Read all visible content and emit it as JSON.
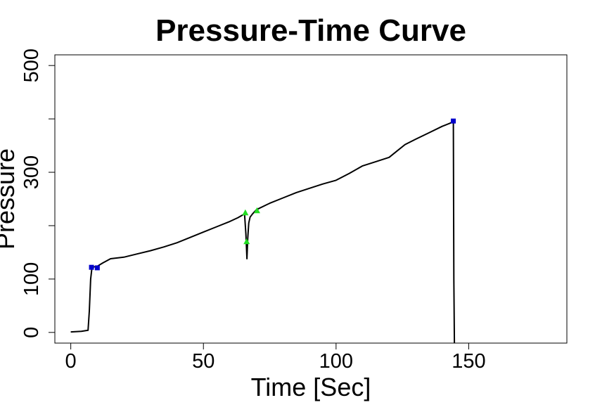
{
  "chart_data": {
    "type": "line",
    "title": "Pressure-Time Curve",
    "xlabel": "Time [Sec]",
    "ylabel": "Pressure",
    "xlim": [
      -6,
      187
    ],
    "ylim": [
      -20,
      520
    ],
    "x_ticks": [
      0,
      50,
      100,
      150
    ],
    "x_tick_labels": [
      "0",
      "50",
      "100",
      "150"
    ],
    "y_ticks": [
      0,
      100,
      200,
      300,
      400,
      500
    ],
    "y_tick_labels": [
      "0",
      "100",
      "",
      "300",
      "",
      "500"
    ],
    "grid": false,
    "series": [
      {
        "color": "#000000",
        "x": [
          0,
          4,
          6.5,
          7,
          7.5,
          8,
          10,
          12,
          15,
          20,
          25,
          30,
          35,
          40,
          45,
          50,
          55,
          60,
          63,
          65.5,
          66,
          66.4,
          66.7,
          67.1,
          67.6,
          68.5,
          70,
          75,
          80,
          85,
          90,
          95,
          100,
          105,
          110,
          115,
          120,
          123,
          126,
          130,
          135,
          140,
          143,
          144.2,
          144.4,
          144.6
        ],
        "y": [
          1,
          2,
          4,
          40,
          100,
          122,
          124,
          130,
          138,
          141,
          147,
          153,
          160,
          168,
          178,
          188,
          198,
          208,
          215,
          222,
          185,
          138,
          175,
          205,
          216,
          222,
          230,
          242,
          252,
          262,
          270,
          278,
          285,
          298,
          312,
          320,
          328,
          340,
          352,
          362,
          374,
          386,
          392,
          395,
          100,
          -20
        ]
      }
    ],
    "markers": [
      {
        "shape": "square",
        "color": "#0000cc",
        "points": [
          [
            7.8,
            122
          ],
          [
            10,
            121
          ],
          [
            144.2,
            396
          ]
        ]
      },
      {
        "shape": "triangle",
        "color": "#22dd22",
        "points": [
          [
            65.8,
            224
          ],
          [
            66.3,
            170
          ],
          [
            70.2,
            228
          ]
        ]
      }
    ]
  }
}
